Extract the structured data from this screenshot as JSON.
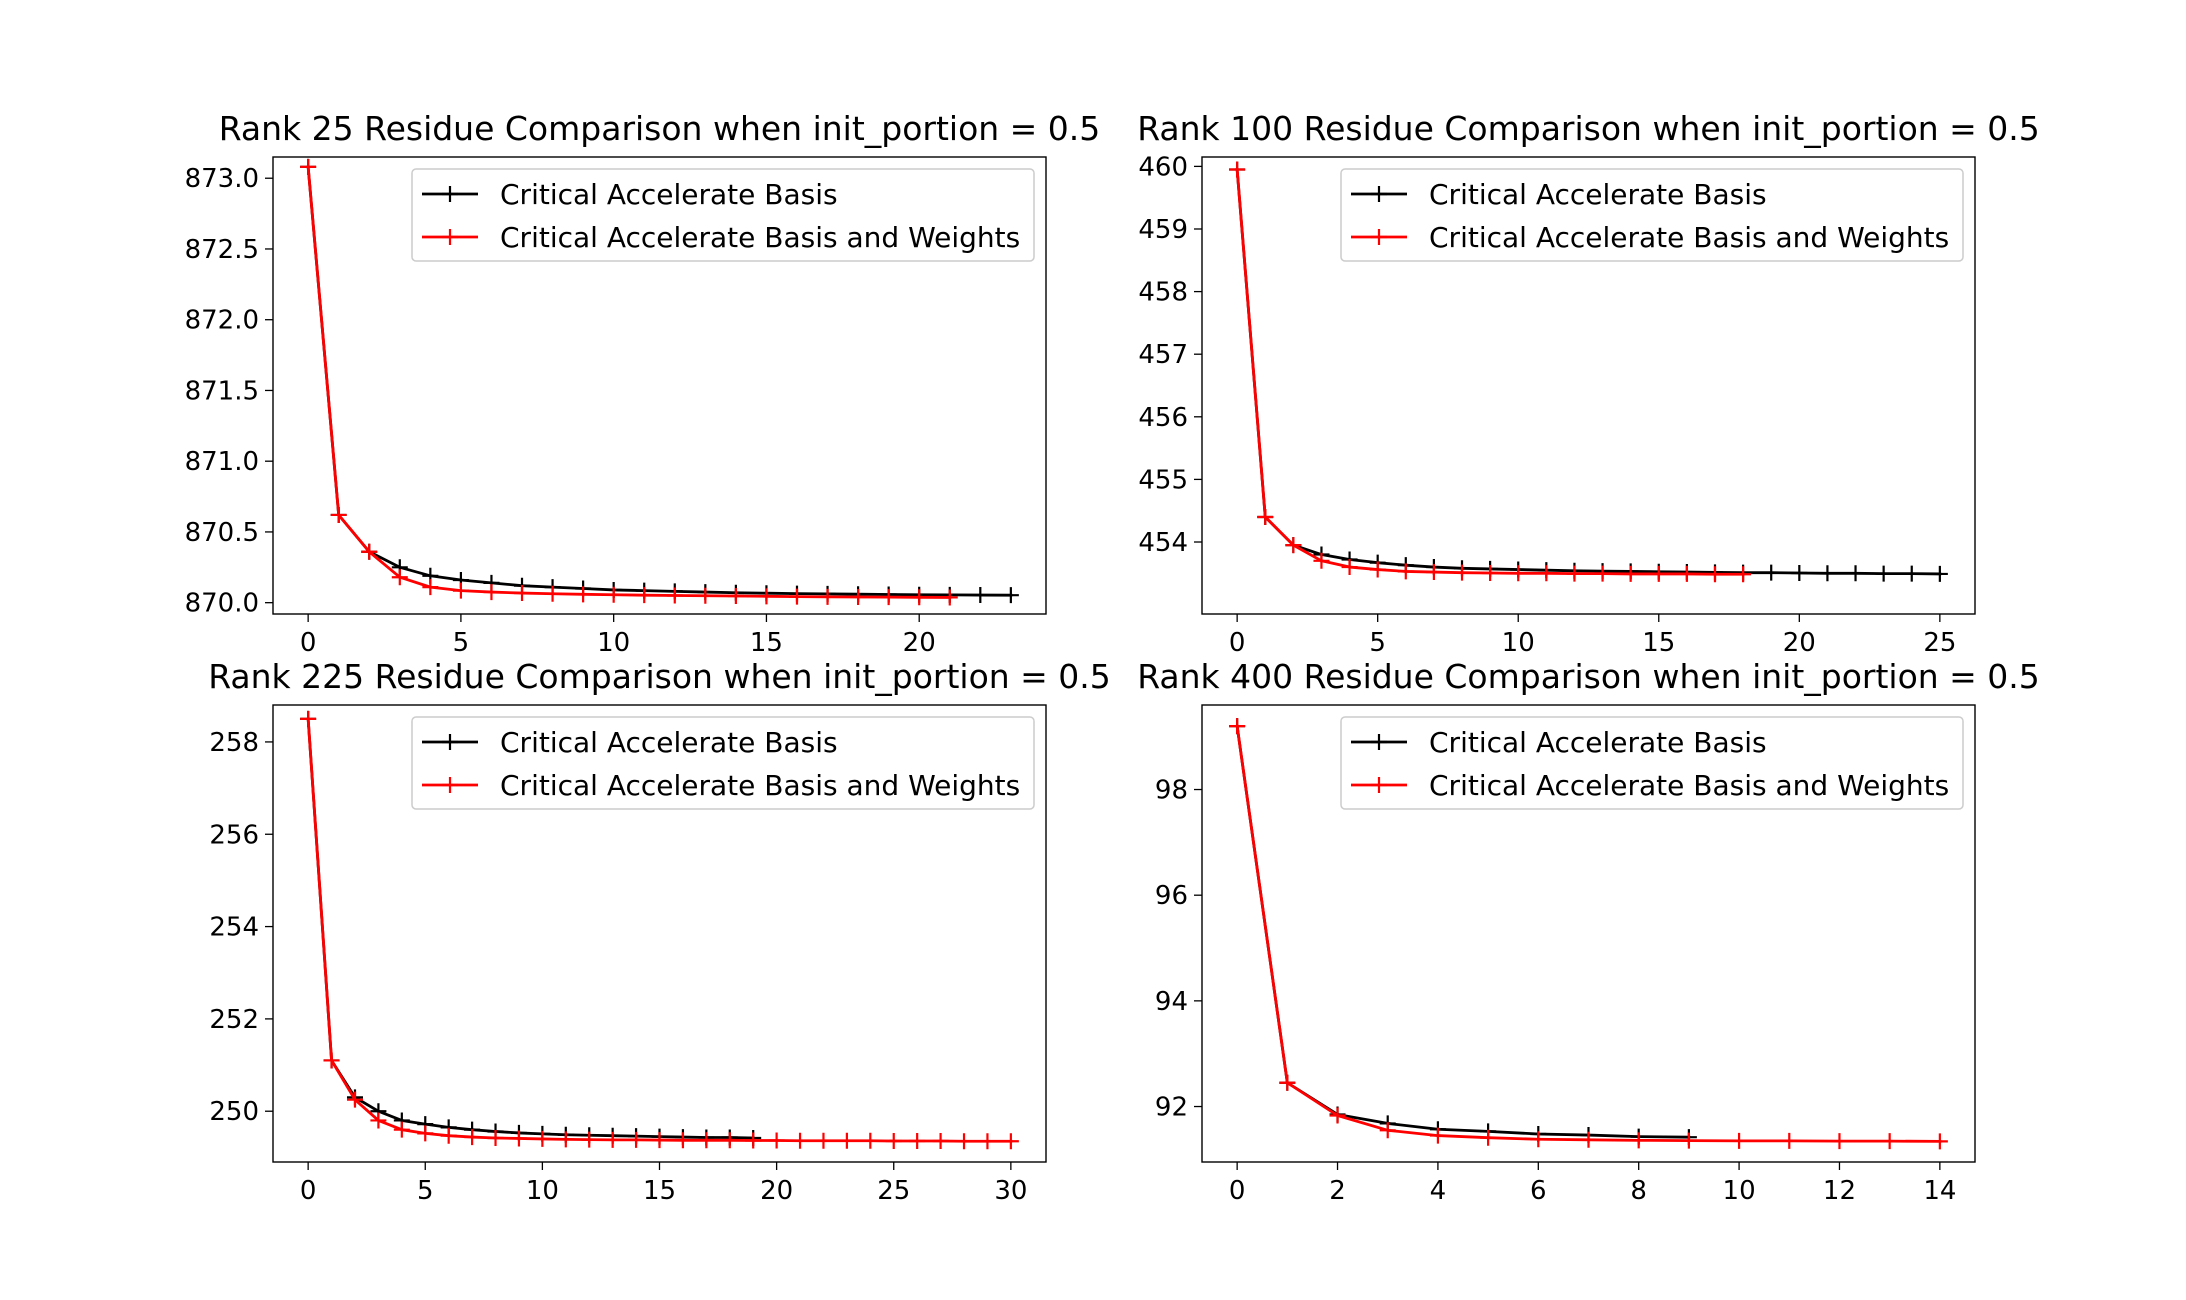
{
  "chart_data": [
    {
      "type": "line",
      "title": "Rank 25 Residue Comparison when init_portion = 0.5",
      "xlim": [
        -1.15,
        24.15
      ],
      "ylim": [
        869.92,
        873.15
      ],
      "x_ticks": [
        0,
        5,
        10,
        15,
        20
      ],
      "y_ticks": [
        870.0,
        870.5,
        871.0,
        871.5,
        872.0,
        872.5,
        873.0
      ],
      "y_tick_labels": [
        "870.0",
        "870.5",
        "871.0",
        "871.5",
        "872.0",
        "872.5",
        "873.0"
      ],
      "legend_position": "upper right",
      "series": [
        {
          "name": "Critical Accelerate Basis",
          "color": "#000000",
          "x": [
            0,
            1,
            2,
            3,
            4,
            5,
            6,
            7,
            8,
            9,
            10,
            11,
            12,
            13,
            14,
            15,
            16,
            17,
            18,
            19,
            20,
            21,
            22,
            23
          ],
          "y": [
            873.08,
            870.62,
            870.36,
            870.25,
            870.19,
            870.16,
            870.14,
            870.12,
            870.11,
            870.1,
            870.09,
            870.085,
            870.08,
            870.075,
            870.07,
            870.067,
            870.064,
            870.062,
            870.06,
            870.058,
            870.056,
            870.055,
            870.054,
            870.053
          ]
        },
        {
          "name": "Critical Accelerate Basis and Weights",
          "color": "#ff0000",
          "x": [
            0,
            1,
            2,
            3,
            4,
            5,
            6,
            7,
            8,
            9,
            10,
            11,
            12,
            13,
            14,
            15,
            16,
            17,
            18,
            19,
            20,
            21
          ],
          "y": [
            873.08,
            870.62,
            870.36,
            870.18,
            870.11,
            870.085,
            870.075,
            870.068,
            870.063,
            870.059,
            870.056,
            870.053,
            870.051,
            870.049,
            870.047,
            870.045,
            870.043,
            870.041,
            870.04,
            870.039,
            870.038,
            870.037
          ]
        }
      ]
    },
    {
      "type": "line",
      "title": "Rank 100 Residue Comparison when init_portion = 0.5",
      "xlim": [
        -1.25,
        26.25
      ],
      "ylim": [
        452.85,
        460.15
      ],
      "x_ticks": [
        0,
        5,
        10,
        15,
        20,
        25
      ],
      "y_ticks": [
        454,
        455,
        456,
        457,
        458,
        459,
        460
      ],
      "y_tick_labels": [
        "454",
        "455",
        "456",
        "457",
        "458",
        "459",
        "460"
      ],
      "legend_position": "upper right",
      "series": [
        {
          "name": "Critical Accelerate Basis",
          "color": "#000000",
          "x": [
            0,
            1,
            2,
            3,
            4,
            5,
            6,
            7,
            8,
            9,
            10,
            11,
            12,
            13,
            14,
            15,
            16,
            17,
            18,
            19,
            20,
            21,
            22,
            23,
            24,
            25
          ],
          "y": [
            459.95,
            454.4,
            453.95,
            453.8,
            453.72,
            453.67,
            453.63,
            453.6,
            453.58,
            453.57,
            453.56,
            453.55,
            453.54,
            453.535,
            453.53,
            453.525,
            453.52,
            453.515,
            453.51,
            453.51,
            453.505,
            453.5,
            453.5,
            453.495,
            453.495,
            453.49
          ]
        },
        {
          "name": "Critical Accelerate Basis and Weights",
          "color": "#ff0000",
          "x": [
            0,
            1,
            2,
            3,
            4,
            5,
            6,
            7,
            8,
            9,
            10,
            11,
            12,
            13,
            14,
            15,
            16,
            17,
            18
          ],
          "y": [
            459.95,
            454.4,
            453.95,
            453.7,
            453.6,
            453.56,
            453.53,
            453.52,
            453.51,
            453.505,
            453.5,
            453.5,
            453.495,
            453.495,
            453.49,
            453.49,
            453.49,
            453.485,
            453.485
          ]
        }
      ]
    },
    {
      "type": "line",
      "title": "Rank 225 Residue Comparison when init_portion = 0.5",
      "xlim": [
        -1.5,
        31.5
      ],
      "ylim": [
        248.9,
        258.8
      ],
      "x_ticks": [
        0,
        5,
        10,
        15,
        20,
        25,
        30
      ],
      "y_ticks": [
        250,
        252,
        254,
        256,
        258
      ],
      "y_tick_labels": [
        "250",
        "252",
        "254",
        "256",
        "258"
      ],
      "legend_position": "upper right",
      "series": [
        {
          "name": "Critical Accelerate Basis",
          "color": "#000000",
          "x": [
            0,
            1,
            2,
            3,
            4,
            5,
            6,
            7,
            8,
            9,
            10,
            11,
            12,
            13,
            14,
            15,
            16,
            17,
            18,
            19
          ],
          "y": [
            258.5,
            251.1,
            250.3,
            250.0,
            249.8,
            249.72,
            249.65,
            249.6,
            249.56,
            249.53,
            249.51,
            249.49,
            249.48,
            249.47,
            249.46,
            249.45,
            249.44,
            249.43,
            249.43,
            249.42
          ]
        },
        {
          "name": "Critical Accelerate Basis and Weights",
          "color": "#ff0000",
          "x": [
            0,
            1,
            2,
            3,
            4,
            5,
            6,
            7,
            8,
            9,
            10,
            11,
            12,
            13,
            14,
            15,
            16,
            17,
            18,
            19,
            20,
            21,
            22,
            23,
            24,
            25,
            26,
            27,
            28,
            29,
            30
          ],
          "y": [
            258.5,
            251.1,
            250.25,
            249.8,
            249.6,
            249.52,
            249.47,
            249.44,
            249.42,
            249.41,
            249.4,
            249.39,
            249.385,
            249.38,
            249.38,
            249.375,
            249.37,
            249.37,
            249.37,
            249.365,
            249.365,
            249.36,
            249.36,
            249.36,
            249.36,
            249.355,
            249.355,
            249.355,
            249.35,
            249.35,
            249.35
          ]
        }
      ]
    },
    {
      "type": "line",
      "title": "Rank 400 Residue Comparison when init_portion = 0.5",
      "xlim": [
        -0.7,
        14.7
      ],
      "ylim": [
        90.95,
        99.6
      ],
      "x_ticks": [
        0,
        2,
        4,
        6,
        8,
        10,
        12,
        14
      ],
      "y_ticks": [
        92,
        94,
        96,
        98
      ],
      "y_tick_labels": [
        "92",
        "94",
        "96",
        "98"
      ],
      "legend_position": "upper right",
      "series": [
        {
          "name": "Critical Accelerate Basis",
          "color": "#000000",
          "x": [
            0,
            1,
            2,
            3,
            4,
            5,
            6,
            7,
            8,
            9
          ],
          "y": [
            99.2,
            92.45,
            91.85,
            91.68,
            91.57,
            91.53,
            91.48,
            91.46,
            91.43,
            91.42
          ]
        },
        {
          "name": "Critical Accelerate Basis and Weights",
          "color": "#ff0000",
          "x": [
            0,
            1,
            2,
            3,
            4,
            5,
            6,
            7,
            8,
            9,
            10,
            11,
            12,
            13,
            14
          ],
          "y": [
            99.2,
            92.45,
            91.83,
            91.55,
            91.45,
            91.41,
            91.38,
            91.37,
            91.36,
            91.355,
            91.35,
            91.35,
            91.345,
            91.345,
            91.34
          ]
        }
      ]
    }
  ]
}
